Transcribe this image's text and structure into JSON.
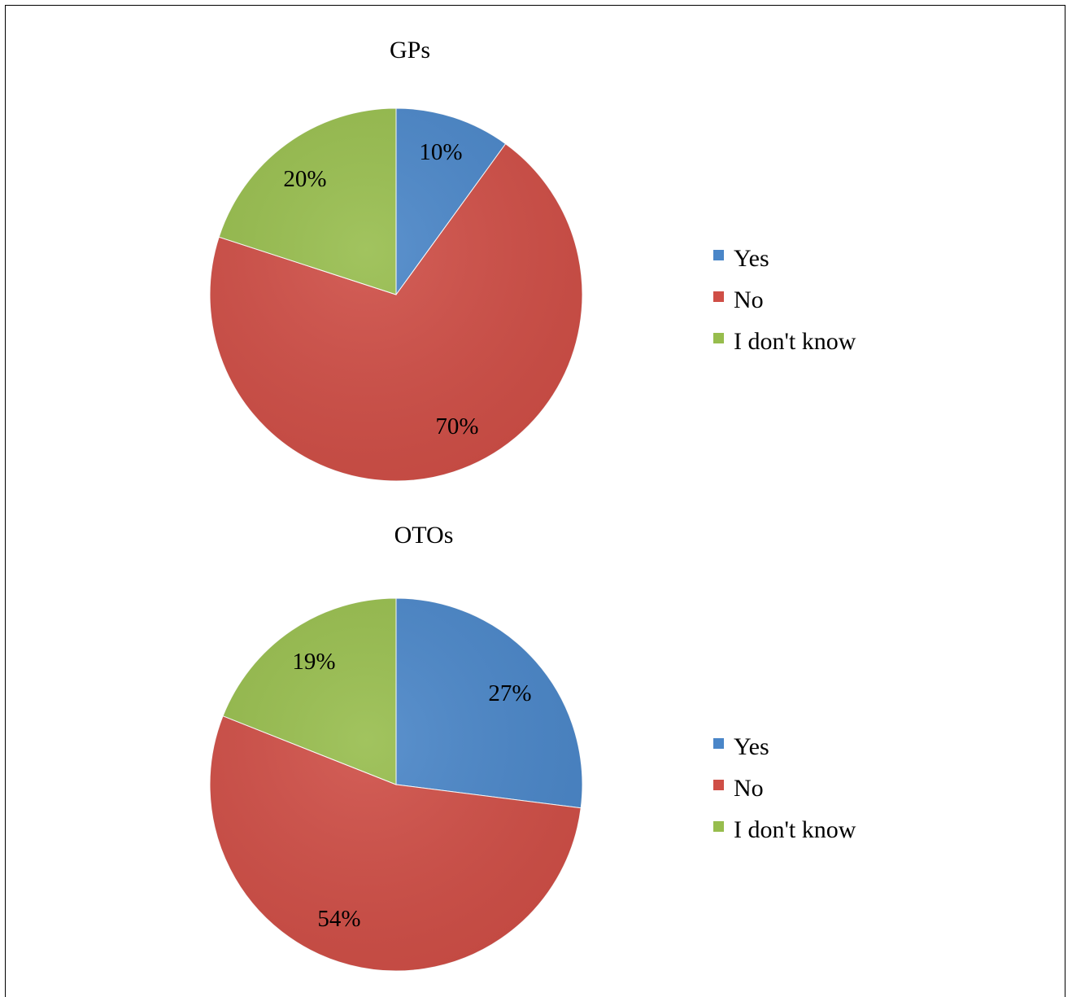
{
  "chart_data": [
    {
      "type": "pie",
      "title": "GPs",
      "categories": [
        "Yes",
        "No",
        "I don't know"
      ],
      "values": [
        10,
        70,
        20
      ],
      "data_labels": [
        "10%",
        "70%",
        "20%"
      ],
      "colors": [
        "#4a86c8",
        "#cf4e46",
        "#97bd4d"
      ],
      "legend": {
        "placement": "right",
        "entries": [
          "Yes",
          "No",
          "I don't know"
        ]
      },
      "start_angle": "12 o'clock",
      "direction": "clockwise"
    },
    {
      "type": "pie",
      "title": "OTOs",
      "categories": [
        "Yes",
        "No",
        "I don't know"
      ],
      "values": [
        27,
        54,
        19
      ],
      "data_labels": [
        "27%",
        "54%",
        "19%"
      ],
      "colors": [
        "#4a86c8",
        "#cf4e46",
        "#97bd4d"
      ],
      "legend": {
        "placement": "right",
        "entries": [
          "Yes",
          "No",
          "I don't know"
        ]
      },
      "start_angle": "12 o'clock",
      "direction": "clockwise"
    }
  ]
}
